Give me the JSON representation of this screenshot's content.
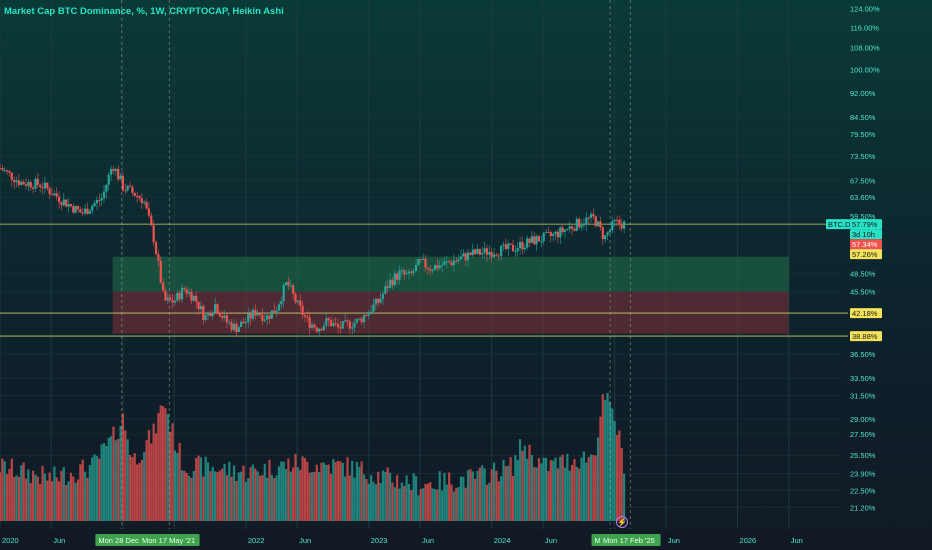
{
  "title": "Market Cap BTC Dominance, %, 1W, CRYPTOCAP, Heikin Ashi",
  "colors": {
    "up": "#26a69a",
    "down": "#ef5350",
    "accent": "#27e2c4",
    "grid": "#1d3a40",
    "hline": "#c8d26a",
    "zone_green": "#1f6a48",
    "zone_red": "#7a2e38"
  },
  "icons": {
    "signal": "lightning-icon"
  },
  "chart_data": {
    "type": "candlestick",
    "title": "Market Cap BTC Dominance, %, 1W, CRYPTOCAP, Heikin Ashi",
    "y_scale": "log",
    "ylim": [
      20.2,
      126
    ],
    "y_ticks": [
      "124.00%",
      "116.00%",
      "108.00%",
      "100.00%",
      "92.00%",
      "84.50%",
      "79.50%",
      "73.50%",
      "67.50%",
      "63.60%",
      "59.50%",
      "48.50%",
      "45.50%",
      "36.50%",
      "33.50%",
      "31.50%",
      "29.00%",
      "27.50%",
      "25.50%",
      "23.90%",
      "22.50%",
      "21.20%"
    ],
    "x_ticks": [
      "2020",
      "Jun",
      "2022",
      "Jun",
      "2023",
      "Jun",
      "2024",
      "Jun",
      "Jun",
      "2026",
      "Jun"
    ],
    "x_range": [
      "2020-01",
      "2026-11"
    ],
    "price_path": [
      [
        "2020-01",
        70.5
      ],
      [
        "2020-03",
        67.0
      ],
      [
        "2020-05",
        66.5
      ],
      [
        "2020-07",
        63.0
      ],
      [
        "2020-09",
        60.0
      ],
      [
        "2020-11",
        63.5
      ],
      [
        "2020-12",
        71.5
      ],
      [
        "2021-01",
        66.0
      ],
      [
        "2021-03",
        63.0
      ],
      [
        "2021-04",
        55.0
      ],
      [
        "2021-05",
        44.0
      ],
      [
        "2021-06",
        44.0
      ],
      [
        "2021-07",
        46.0
      ],
      [
        "2021-08",
        44.5
      ],
      [
        "2021-09",
        41.5
      ],
      [
        "2021-10",
        43.5
      ],
      [
        "2021-11",
        41.0
      ],
      [
        "2021-12",
        40.0
      ],
      [
        "2022-01",
        41.0
      ],
      [
        "2022-02",
        42.5
      ],
      [
        "2022-03",
        41.5
      ],
      [
        "2022-04",
        43.0
      ],
      [
        "2022-05",
        47.0
      ],
      [
        "2022-06",
        43.5
      ],
      [
        "2022-07",
        41.0
      ],
      [
        "2022-08",
        40.0
      ],
      [
        "2022-09",
        41.0
      ],
      [
        "2022-10",
        40.0
      ],
      [
        "2022-12",
        41.0
      ],
      [
        "2023-01",
        42.5
      ],
      [
        "2023-02",
        44.0
      ],
      [
        "2023-03",
        47.0
      ],
      [
        "2023-04",
        48.5
      ],
      [
        "2023-05",
        48.0
      ],
      [
        "2023-06",
        50.5
      ],
      [
        "2023-07",
        49.5
      ],
      [
        "2023-09",
        50.5
      ],
      [
        "2023-11",
        52.0
      ],
      [
        "2024-01",
        52.5
      ],
      [
        "2024-03",
        53.0
      ],
      [
        "2024-05",
        54.5
      ],
      [
        "2024-07",
        55.5
      ],
      [
        "2024-09",
        57.5
      ],
      [
        "2024-10",
        58.5
      ],
      [
        "2024-11",
        59.0
      ],
      [
        "2024-12",
        55.0
      ],
      [
        "2025-01",
        58.0
      ],
      [
        "2025-02",
        57.8
      ]
    ],
    "volume_profile": [
      [
        "2020-01",
        24.5
      ],
      [
        "2020-06",
        23.5
      ],
      [
        "2020-10",
        24.5
      ],
      [
        "2020-12",
        27.0
      ],
      [
        "2021-01",
        29.0
      ],
      [
        "2021-02",
        25.0
      ],
      [
        "2021-04",
        27.5
      ],
      [
        "2021-05",
        31.0
      ],
      [
        "2021-06",
        27.0
      ],
      [
        "2021-07",
        24.5
      ],
      [
        "2021-09",
        24.5
      ],
      [
        "2022-01",
        24.0
      ],
      [
        "2022-06",
        24.8
      ],
      [
        "2022-11",
        24.5
      ],
      [
        "2023-03",
        23.5
      ],
      [
        "2023-06",
        23.0
      ],
      [
        "2023-11",
        23.5
      ],
      [
        "2024-03",
        24.5
      ],
      [
        "2024-04",
        26.5
      ],
      [
        "2024-06",
        24.5
      ],
      [
        "2024-11",
        25.5
      ],
      [
        "2024-12",
        31.5
      ],
      [
        "2025-01",
        29.0
      ],
      [
        "2025-02",
        24.5
      ]
    ],
    "horizontal_levels": [
      {
        "value": 57.79,
        "label": "57.79%",
        "kind": "last"
      },
      {
        "value": 42.18,
        "label": "42.18%",
        "kind": "level"
      },
      {
        "value": 38.88,
        "label": "38.88%",
        "kind": "level"
      }
    ],
    "zones": [
      {
        "from": 45.5,
        "to": 51.5,
        "color": "green"
      },
      {
        "from": 39.2,
        "to": 45.5,
        "color": "red"
      }
    ],
    "zone_time_range": [
      "2020-12",
      "2026-06"
    ],
    "vertical_markers": [
      {
        "date": "2020-12-28",
        "label": "Mon 28 Dec '"
      },
      {
        "date": "2021-05-17",
        "label": "Mon 17 May '21"
      },
      {
        "date": "2024-12-18",
        "label": "Mon 18 I"
      },
      {
        "date": "2025-02-17",
        "label": "Mon 17 Feb '25"
      }
    ],
    "price_tags": [
      {
        "text": "BTC.D",
        "style": "symbol"
      },
      {
        "text": "57.79%",
        "style": "last"
      },
      {
        "text": "3d 10h",
        "style": "countdown"
      },
      {
        "text": "57.34%",
        "style": "red"
      },
      {
        "text": "57.26%",
        "style": "yellow"
      },
      {
        "text": "42.18%",
        "style": "yellow"
      },
      {
        "text": "38.88%",
        "style": "yellow"
      }
    ]
  }
}
